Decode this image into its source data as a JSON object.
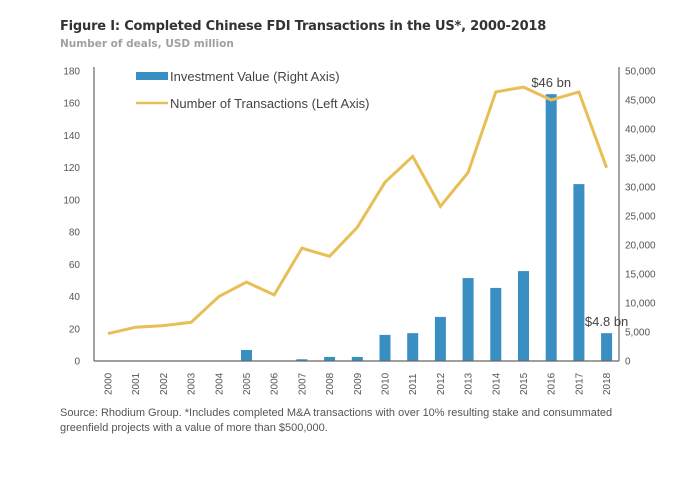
{
  "header": {
    "title": "Figure I: Completed Chinese FDI Transactions in the US*, 2000-2018",
    "subtitle": "Number of deals, USD million"
  },
  "footnote": "Source: Rhodium Group. *Includes completed M&A transactions with over 10% resulting stake and consummated greenfield projects with a value of more than $500,000.",
  "colors": {
    "bar": "#3a8fc2",
    "line": "#e8bf57",
    "axis": "#666666"
  },
  "chart_data": {
    "type": "bar",
    "title": "Figure I: Completed Chinese FDI Transactions in the US*, 2000-2018",
    "subtitle": "Number of deals, USD million",
    "categories": [
      "2000",
      "2001",
      "2002",
      "2003",
      "2004",
      "2005",
      "2006",
      "2007",
      "2008",
      "2009",
      "2010",
      "2011",
      "2012",
      "2013",
      "2014",
      "2015",
      "2016",
      "2017",
      "2018"
    ],
    "series": [
      {
        "name": "Investment Value (Right Axis)",
        "type": "bar",
        "axis": "right",
        "values": [
          0,
          0,
          0,
          0,
          0,
          1900,
          0,
          300,
          700,
          700,
          4500,
          4800,
          7600,
          14300,
          12600,
          15500,
          46000,
          30500,
          4800
        ]
      },
      {
        "name": "Number of Transactions (Left Axis)",
        "type": "line",
        "axis": "left",
        "values": [
          17,
          21,
          22,
          24,
          40,
          49,
          41,
          70,
          65,
          83,
          111,
          127,
          96,
          117,
          167,
          170,
          162,
          167,
          120
        ]
      }
    ],
    "left_axis": {
      "ylim": [
        0,
        180
      ],
      "ticks": [
        "0",
        "20",
        "40",
        "60",
        "80",
        "100",
        "120",
        "140",
        "160",
        "180"
      ]
    },
    "right_axis": {
      "ylim": [
        0,
        50000
      ],
      "ticks": [
        "0",
        "5,000",
        "10,000",
        "15,000",
        "20,000",
        "25,000",
        "30,000",
        "35,000",
        "40,000",
        "45,000",
        "50,000"
      ]
    },
    "annotations": [
      {
        "category": "2016",
        "text": "$46 bn"
      },
      {
        "category": "2018",
        "text": "$4.8 bn"
      }
    ],
    "legend": {
      "placement": "top-left",
      "entries": [
        "Investment Value (Right Axis)",
        "Number of Transactions (Left Axis)"
      ]
    },
    "grid": false,
    "xlabel": "",
    "ylabel": ""
  }
}
